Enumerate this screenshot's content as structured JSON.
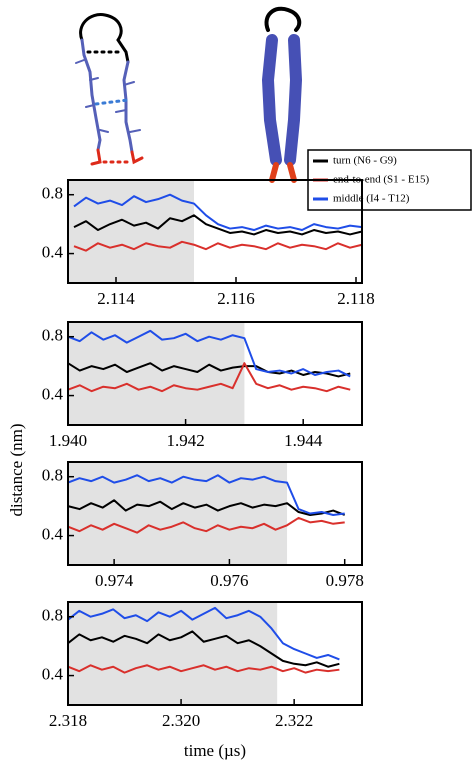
{
  "figure_labels": {
    "ylabel": "distance (nm)",
    "xlabel": "time (µs)"
  },
  "chart_data": [
    {
      "type": "line",
      "xlim": [
        2.1132,
        2.1181
      ],
      "xticks": [
        2.114,
        2.116,
        2.118
      ],
      "ylim": [
        0.2,
        0.9
      ],
      "yticks": [
        0.4,
        0.8
      ],
      "shaded_range": [
        2.1132,
        2.1153
      ],
      "x": [
        2.1133,
        2.1135,
        2.1137,
        2.1139,
        2.1141,
        2.1143,
        2.1145,
        2.1147,
        2.1149,
        2.1151,
        2.1153,
        2.1155,
        2.1157,
        2.1159,
        2.1161,
        2.1163,
        2.1165,
        2.1167,
        2.1169,
        2.1171,
        2.1173,
        2.1175,
        2.1177,
        2.1179,
        2.1181
      ],
      "series": [
        {
          "name": "turn (N6 - G9)",
          "color": "#000000",
          "values": [
            0.58,
            0.62,
            0.56,
            0.6,
            0.63,
            0.59,
            0.61,
            0.57,
            0.64,
            0.62,
            0.66,
            0.6,
            0.57,
            0.54,
            0.55,
            0.53,
            0.56,
            0.54,
            0.55,
            0.53,
            0.56,
            0.54,
            0.55,
            0.53,
            0.55
          ]
        },
        {
          "name": "end-to-end (S1 - E15)",
          "color": "#d9302c",
          "values": [
            0.45,
            0.42,
            0.47,
            0.44,
            0.46,
            0.43,
            0.47,
            0.45,
            0.44,
            0.48,
            0.46,
            0.43,
            0.47,
            0.44,
            0.46,
            0.45,
            0.43,
            0.47,
            0.44,
            0.46,
            0.45,
            0.43,
            0.47,
            0.44,
            0.46
          ]
        },
        {
          "name": "middle (I4 - T12)",
          "color": "#1f4de8",
          "values": [
            0.72,
            0.78,
            0.74,
            0.76,
            0.73,
            0.79,
            0.75,
            0.77,
            0.8,
            0.76,
            0.74,
            0.66,
            0.6,
            0.57,
            0.58,
            0.56,
            0.59,
            0.57,
            0.58,
            0.56,
            0.6,
            0.58,
            0.57,
            0.59,
            0.58
          ]
        }
      ]
    },
    {
      "type": "line",
      "xlim": [
        1.94,
        1.945
      ],
      "xticks": [
        {
          "value": 1.94,
          "label": "1.940"
        },
        1.942,
        1.944
      ],
      "ylim": [
        0.2,
        0.9
      ],
      "yticks": [
        0.4,
        0.8
      ],
      "shaded_range": [
        1.94,
        1.943
      ],
      "x": [
        1.94,
        1.9402,
        1.9404,
        1.9406,
        1.9408,
        1.941,
        1.9412,
        1.9414,
        1.9416,
        1.9418,
        1.942,
        1.9422,
        1.9424,
        1.9426,
        1.9428,
        1.943,
        1.9432,
        1.9434,
        1.9436,
        1.9438,
        1.944,
        1.9442,
        1.9444,
        1.9446,
        1.9448
      ],
      "series": [
        {
          "color": "#000000",
          "values": [
            0.62,
            0.57,
            0.6,
            0.58,
            0.61,
            0.56,
            0.59,
            0.62,
            0.57,
            0.6,
            0.58,
            0.56,
            0.61,
            0.57,
            0.59,
            0.6,
            0.6,
            0.56,
            0.55,
            0.57,
            0.54,
            0.56,
            0.55,
            0.53,
            0.55
          ]
        },
        {
          "color": "#d9302c",
          "values": [
            0.44,
            0.47,
            0.43,
            0.46,
            0.45,
            0.48,
            0.44,
            0.46,
            0.43,
            0.47,
            0.45,
            0.44,
            0.46,
            0.48,
            0.45,
            0.62,
            0.48,
            0.45,
            0.47,
            0.44,
            0.46,
            0.45,
            0.43,
            0.46,
            0.44
          ]
        },
        {
          "color": "#1f4de8",
          "values": [
            0.8,
            0.77,
            0.83,
            0.78,
            0.81,
            0.76,
            0.8,
            0.84,
            0.78,
            0.79,
            0.82,
            0.77,
            0.8,
            0.78,
            0.81,
            0.79,
            0.58,
            0.56,
            0.57,
            0.55,
            0.58,
            0.54,
            0.56,
            0.57,
            0.53
          ]
        }
      ]
    },
    {
      "type": "line",
      "xlim": [
        0.9732,
        0.9783
      ],
      "xticks": [
        0.974,
        0.976,
        0.978
      ],
      "ylim": [
        0.2,
        0.9
      ],
      "yticks": [
        0.4,
        0.8
      ],
      "shaded_range": [
        0.9732,
        0.977
      ],
      "x": [
        0.9732,
        0.9734,
        0.9736,
        0.9738,
        0.974,
        0.9742,
        0.9744,
        0.9746,
        0.9748,
        0.975,
        0.9752,
        0.9754,
        0.9756,
        0.9758,
        0.976,
        0.9762,
        0.9764,
        0.9766,
        0.9768,
        0.977,
        0.9772,
        0.9774,
        0.9776,
        0.9778,
        0.978
      ],
      "series": [
        {
          "color": "#000000",
          "values": [
            0.6,
            0.58,
            0.62,
            0.59,
            0.64,
            0.57,
            0.61,
            0.6,
            0.63,
            0.58,
            0.62,
            0.59,
            0.61,
            0.57,
            0.6,
            0.62,
            0.59,
            0.61,
            0.6,
            0.62,
            0.56,
            0.54,
            0.55,
            0.57,
            0.54
          ]
        },
        {
          "color": "#d9302c",
          "values": [
            0.46,
            0.43,
            0.47,
            0.44,
            0.48,
            0.45,
            0.42,
            0.47,
            0.44,
            0.46,
            0.49,
            0.45,
            0.43,
            0.47,
            0.44,
            0.46,
            0.45,
            0.48,
            0.44,
            0.47,
            0.52,
            0.49,
            0.5,
            0.48,
            0.49
          ]
        },
        {
          "color": "#1f4de8",
          "values": [
            0.76,
            0.79,
            0.77,
            0.8,
            0.76,
            0.78,
            0.81,
            0.77,
            0.79,
            0.76,
            0.8,
            0.78,
            0.77,
            0.81,
            0.76,
            0.79,
            0.78,
            0.8,
            0.77,
            0.76,
            0.58,
            0.55,
            0.56,
            0.54,
            0.55
          ]
        }
      ]
    },
    {
      "type": "line",
      "xlim": [
        2.318,
        2.3232
      ],
      "xticks": [
        2.318,
        {
          "value": 2.32,
          "label": "2.320"
        },
        2.322
      ],
      "ylim": [
        0.2,
        0.9
      ],
      "yticks": [
        0.4,
        0.8
      ],
      "shaded_range": [
        2.318,
        2.3217
      ],
      "x": [
        2.318,
        2.3182,
        2.3184,
        2.3186,
        2.3188,
        2.319,
        2.3192,
        2.3194,
        2.3196,
        2.3198,
        2.32,
        2.3202,
        2.3204,
        2.3206,
        2.3208,
        2.321,
        2.3212,
        2.3214,
        2.3216,
        2.3218,
        2.322,
        2.3222,
        2.3224,
        2.3226,
        2.3228
      ],
      "series": [
        {
          "color": "#000000",
          "values": [
            0.62,
            0.68,
            0.64,
            0.66,
            0.63,
            0.67,
            0.65,
            0.62,
            0.68,
            0.64,
            0.66,
            0.7,
            0.63,
            0.65,
            0.67,
            0.62,
            0.64,
            0.6,
            0.55,
            0.5,
            0.48,
            0.47,
            0.49,
            0.46,
            0.48
          ]
        },
        {
          "color": "#d9302c",
          "values": [
            0.46,
            0.43,
            0.47,
            0.44,
            0.46,
            0.42,
            0.45,
            0.47,
            0.44,
            0.46,
            0.43,
            0.45,
            0.47,
            0.44,
            0.46,
            0.43,
            0.45,
            0.44,
            0.46,
            0.43,
            0.45,
            0.42,
            0.44,
            0.43,
            0.44
          ]
        },
        {
          "color": "#1f4de8",
          "values": [
            0.78,
            0.84,
            0.8,
            0.82,
            0.85,
            0.79,
            0.81,
            0.77,
            0.83,
            0.8,
            0.84,
            0.78,
            0.82,
            0.86,
            0.79,
            0.81,
            0.84,
            0.8,
            0.72,
            0.62,
            0.58,
            0.55,
            0.52,
            0.54,
            0.51
          ]
        }
      ]
    }
  ]
}
